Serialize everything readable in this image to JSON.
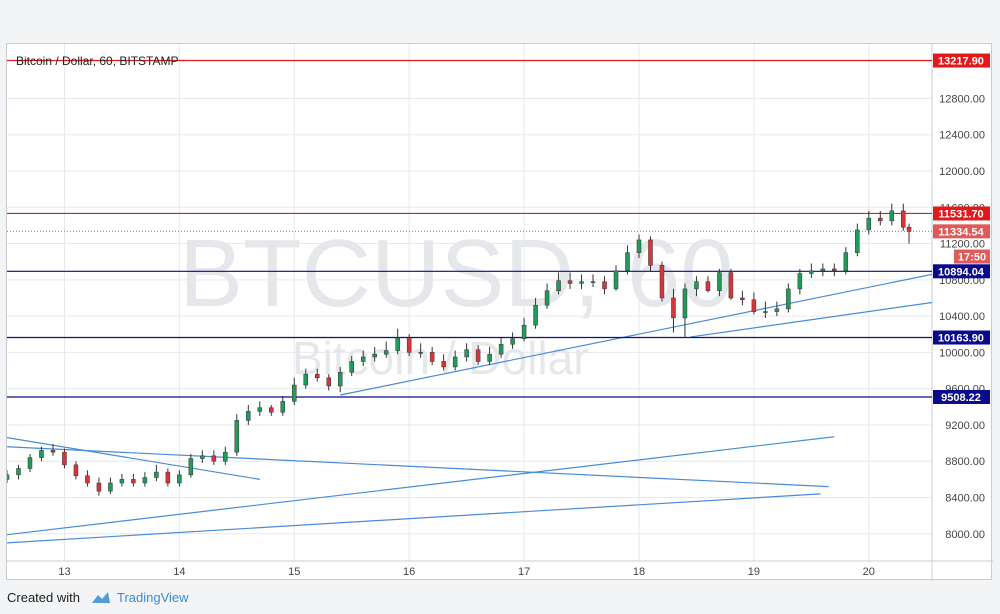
{
  "chart_data": {
    "type": "candlestick",
    "title": "Bitcoin / Dollar, 60, BITSTAMP",
    "watermark": [
      "BTCUSD, 60",
      "Bitcoin / Dollar"
    ],
    "x_ticks": [
      "13",
      "14",
      "15",
      "16",
      "17",
      "18",
      "19",
      "20"
    ],
    "y_ticks": [
      8000,
      8400,
      8800,
      9200,
      9600,
      10000,
      10400,
      10800,
      11200,
      11600,
      12000,
      12400,
      12800
    ],
    "y_tick_labels": [
      "8000.00",
      "8400.00",
      "8800.00",
      "9200.00",
      "9600.00",
      "10000.00",
      "10400.00",
      "10800.00",
      "11200.00",
      "11600.00",
      "12000.00",
      "12400.00",
      "12800.00"
    ],
    "ylim": [
      7700,
      13400
    ],
    "xlim": [
      12.5,
      20.55
    ],
    "horizontal_levels": [
      {
        "value": 13217.9,
        "label": "13217.90",
        "color": "#e0191b"
      },
      {
        "value": 11531.7,
        "label": "11531.70",
        "color": "#e0191b"
      },
      {
        "value": 10894.04,
        "label": "10894.04",
        "color": "#0a0a8c"
      },
      {
        "value": 10163.9,
        "label": "10163.90",
        "color": "#0a0a8c"
      },
      {
        "value": 9508.22,
        "label": "9508.22",
        "color": "#0a0a8c"
      }
    ],
    "current_price": {
      "value": 11334.54,
      "label": "11334.54",
      "color": "#e05a5a"
    },
    "countdown": {
      "value": 11145,
      "label": "17:50",
      "color": "#e05a5a"
    },
    "trendlines": [
      {
        "x1": 12.5,
        "y1": 9060,
        "x2": 14.7,
        "y2": 8600
      },
      {
        "x1": 12.5,
        "y1": 8960,
        "x2": 19.65,
        "y2": 8520
      },
      {
        "x1": 12.5,
        "y1": 7990,
        "x2": 19.7,
        "y2": 9070
      },
      {
        "x1": 12.5,
        "y1": 7900,
        "x2": 19.58,
        "y2": 8440
      },
      {
        "x1": 15.4,
        "y1": 9530,
        "x2": 20.55,
        "y2": 10860
      },
      {
        "x1": 18.45,
        "y1": 10170,
        "x2": 20.55,
        "y2": 10550
      }
    ],
    "colors": {
      "up": "#1f9c5a",
      "down": "#d8353b",
      "wick": "#333333",
      "trendline": "#4a8bd6",
      "grid": "#e6e9ec"
    },
    "series": {
      "x": [
        12.5,
        12.6,
        12.7,
        12.8,
        12.9,
        13.0,
        13.1,
        13.2,
        13.3,
        13.4,
        13.5,
        13.6,
        13.7,
        13.8,
        13.9,
        14.0,
        14.1,
        14.2,
        14.3,
        14.4,
        14.5,
        14.6,
        14.7,
        14.8,
        14.9,
        15.0,
        15.1,
        15.2,
        15.3,
        15.4,
        15.5,
        15.6,
        15.7,
        15.8,
        15.9,
        16.0,
        16.1,
        16.2,
        16.3,
        16.4,
        16.5,
        16.6,
        16.7,
        16.8,
        16.9,
        17.0,
        17.1,
        17.2,
        17.3,
        17.4,
        17.5,
        17.6,
        17.7,
        17.8,
        17.9,
        18.0,
        18.1,
        18.2,
        18.3,
        18.4,
        18.5,
        18.6,
        18.7,
        18.8,
        18.9,
        19.0,
        19.1,
        19.2,
        19.3,
        19.4,
        19.5,
        19.6,
        19.7,
        19.8,
        19.9,
        20.0,
        20.1,
        20.2,
        20.3,
        20.35
      ],
      "open": [
        8600,
        8650,
        8720,
        8840,
        8920,
        8900,
        8760,
        8640,
        8560,
        8470,
        8560,
        8600,
        8560,
        8620,
        8680,
        8560,
        8650,
        8830,
        8860,
        8800,
        8900,
        9250,
        9350,
        9390,
        9340,
        9460,
        9640,
        9760,
        9720,
        9630,
        9780,
        9900,
        9950,
        9980,
        10020,
        10160,
        10000,
        10000,
        9900,
        9840,
        9950,
        10030,
        9900,
        9980,
        10090,
        10150,
        10300,
        10520,
        10680,
        10790,
        10760,
        10780,
        10780,
        10700,
        10900,
        11100,
        11240,
        10960,
        10600,
        10380,
        10700,
        10780,
        10680,
        10880,
        10600,
        10580,
        10450,
        10450,
        10480,
        10700,
        10870,
        10900,
        10920,
        10900,
        11100,
        11350,
        11480,
        11450,
        11560,
        11380
      ],
      "close": [
        8650,
        8720,
        8840,
        8920,
        8900,
        8760,
        8640,
        8560,
        8470,
        8560,
        8600,
        8560,
        8620,
        8680,
        8560,
        8650,
        8830,
        8860,
        8800,
        8900,
        9250,
        9350,
        9390,
        9340,
        9460,
        9640,
        9760,
        9720,
        9630,
        9780,
        9900,
        9950,
        9980,
        10020,
        10160,
        10000,
        10000,
        9900,
        9840,
        9950,
        10030,
        9900,
        9980,
        10090,
        10150,
        10300,
        10520,
        10680,
        10790,
        10760,
        10780,
        10780,
        10700,
        10900,
        11100,
        11240,
        10960,
        10600,
        10380,
        10700,
        10780,
        10680,
        10880,
        10600,
        10580,
        10450,
        10450,
        10480,
        10700,
        10870,
        10900,
        10920,
        10900,
        11100,
        11350,
        11480,
        11450,
        11560,
        11380,
        11334.54
      ],
      "high": [
        8700,
        8760,
        8880,
        8960,
        8990,
        8940,
        8800,
        8700,
        8620,
        8620,
        8660,
        8660,
        8680,
        8760,
        8720,
        8700,
        8880,
        8920,
        8920,
        8960,
        9320,
        9420,
        9460,
        9420,
        9520,
        9720,
        9820,
        9820,
        9760,
        9840,
        9960,
        10020,
        10060,
        10120,
        10260,
        10200,
        10100,
        10060,
        9980,
        10020,
        10100,
        10080,
        10060,
        10160,
        10220,
        10380,
        10600,
        10760,
        10880,
        10880,
        10860,
        10860,
        10840,
        10960,
        11180,
        11300,
        11280,
        11000,
        10700,
        10760,
        10840,
        10840,
        10920,
        10920,
        10680,
        10660,
        10560,
        10560,
        10760,
        10920,
        10980,
        10980,
        10980,
        11160,
        11420,
        11560,
        11560,
        11640,
        11640,
        11420
      ],
      "low": [
        8560,
        8600,
        8680,
        8800,
        8860,
        8720,
        8600,
        8520,
        8420,
        8440,
        8520,
        8520,
        8520,
        8580,
        8520,
        8520,
        8620,
        8780,
        8760,
        8760,
        8860,
        9200,
        9300,
        9300,
        9300,
        9420,
        9600,
        9680,
        9580,
        9560,
        9740,
        9850,
        9900,
        9940,
        9980,
        9960,
        9940,
        9860,
        9800,
        9800,
        9900,
        9860,
        9860,
        9940,
        10040,
        10120,
        10260,
        10480,
        10640,
        10700,
        10700,
        10720,
        10640,
        10680,
        10860,
        11040,
        10900,
        10560,
        10220,
        10160,
        10620,
        10660,
        10620,
        10580,
        10520,
        10420,
        10380,
        10400,
        10440,
        10640,
        10820,
        10840,
        10840,
        10860,
        11060,
        11300,
        11400,
        11400,
        11340,
        11200
      ]
    }
  },
  "footer": {
    "created_with": "Created with",
    "brand": "TradingView"
  }
}
